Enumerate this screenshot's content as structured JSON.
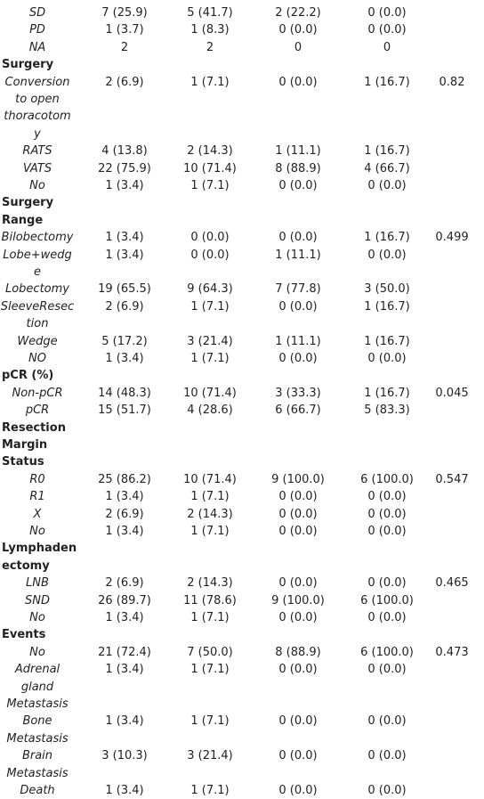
{
  "rows": [
    {
      "type": "data",
      "label": "SD",
      "values": [
        "7 (25.9)",
        "5 (41.7)",
        "2 (22.2)",
        "0 (0.0)"
      ],
      "p": ""
    },
    {
      "type": "data",
      "label": "PD",
      "values": [
        "1 (3.7)",
        "1 (8.3)",
        "0 (0.0)",
        "0 (0.0)"
      ],
      "p": ""
    },
    {
      "type": "data",
      "label": "NA",
      "values": [
        "2",
        "2",
        "0",
        "0"
      ],
      "p": ""
    },
    {
      "type": "section",
      "lines": [
        "Surgery"
      ]
    },
    {
      "type": "data",
      "lines": [
        "Conversion",
        "to open",
        "thoracotom",
        "y"
      ],
      "values": [
        "2 (6.9)",
        "1 (7.1)",
        "0 (0.0)",
        "1 (16.7)"
      ],
      "p": "0.82"
    },
    {
      "type": "data",
      "label": "RATS",
      "values": [
        "4 (13.8)",
        "2 (14.3)",
        "1 (11.1)",
        "1 (16.7)"
      ],
      "p": ""
    },
    {
      "type": "data",
      "label": "VATS",
      "values": [
        "22 (75.9)",
        "10 (71.4)",
        "8 (88.9)",
        "4 (66.7)"
      ],
      "p": ""
    },
    {
      "type": "data",
      "label": "No",
      "values": [
        "1 (3.4)",
        "1 (7.1)",
        "0 (0.0)",
        "0 (0.0)"
      ],
      "p": ""
    },
    {
      "type": "section",
      "lines": [
        "Surgery",
        "Range"
      ]
    },
    {
      "type": "data",
      "label": "Bilobectomy",
      "values": [
        "1 (3.4)",
        "0 (0.0)",
        "0 (0.0)",
        "1 (16.7)"
      ],
      "p": "0.499"
    },
    {
      "type": "data",
      "lines": [
        "Lobe+wedg",
        "e"
      ],
      "values": [
        "1 (3.4)",
        "0 (0.0)",
        "1 (11.1)",
        "0 (0.0)"
      ],
      "p": ""
    },
    {
      "type": "data",
      "label": "Lobectomy",
      "values": [
        "19 (65.5)",
        "9 (64.3)",
        "7 (77.8)",
        "3 (50.0)"
      ],
      "p": ""
    },
    {
      "type": "data",
      "lines": [
        "SleeveResec",
        "tion"
      ],
      "values": [
        "2 (6.9)",
        "1 (7.1)",
        "0 (0.0)",
        "1 (16.7)"
      ],
      "p": ""
    },
    {
      "type": "data",
      "label": "Wedge",
      "values": [
        "5 (17.2)",
        "3 (21.4)",
        "1 (11.1)",
        "1 (16.7)"
      ],
      "p": ""
    },
    {
      "type": "data",
      "label": "NO",
      "values": [
        "1 (3.4)",
        "1 (7.1)",
        "0 (0.0)",
        "0 (0.0)"
      ],
      "p": ""
    },
    {
      "type": "section",
      "lines": [
        "pCR (%)"
      ]
    },
    {
      "type": "data",
      "label": "Non-pCR",
      "values": [
        "14 (48.3)",
        "10 (71.4)",
        "3 (33.3)",
        "1 (16.7)"
      ],
      "p": "0.045"
    },
    {
      "type": "data",
      "label": "pCR",
      "values": [
        "15 (51.7)",
        "4 (28.6)",
        "6 (66.7)",
        "5 (83.3)"
      ],
      "p": ""
    },
    {
      "type": "section",
      "lines": [
        "Resection",
        "Margin",
        "Status"
      ]
    },
    {
      "type": "data",
      "label": "R0",
      "values": [
        "25 (86.2)",
        "10 (71.4)",
        "9 (100.0)",
        "6 (100.0)"
      ],
      "p": "0.547"
    },
    {
      "type": "data",
      "label": "R1",
      "values": [
        "1 (3.4)",
        "1 (7.1)",
        "0 (0.0)",
        "0 (0.0)"
      ],
      "p": ""
    },
    {
      "type": "data",
      "label": "X",
      "values": [
        "2 (6.9)",
        "2 (14.3)",
        "0 (0.0)",
        "0 (0.0)"
      ],
      "p": ""
    },
    {
      "type": "data",
      "label": "No",
      "values": [
        "1 (3.4)",
        "1 (7.1)",
        "0 (0.0)",
        "0 (0.0)"
      ],
      "p": ""
    },
    {
      "type": "section",
      "lines": [
        "Lymphaden",
        "ectomy"
      ]
    },
    {
      "type": "data",
      "label": "LNB",
      "values": [
        "2 (6.9)",
        "2 (14.3)",
        "0 (0.0)",
        "0 (0.0)"
      ],
      "p": "0.465"
    },
    {
      "type": "data",
      "label": "SND",
      "values": [
        "26 (89.7)",
        "11 (78.6)",
        "9 (100.0)",
        "6 (100.0)"
      ],
      "p": ""
    },
    {
      "type": "data",
      "label": "No",
      "values": [
        "1 (3.4)",
        "1 (7.1)",
        "0 (0.0)",
        "0 (0.0)"
      ],
      "p": ""
    },
    {
      "type": "section",
      "lines": [
        "Events"
      ]
    },
    {
      "type": "data",
      "label": "No",
      "values": [
        "21 (72.4)",
        "7 (50.0)",
        "8 (88.9)",
        "6 (100.0)"
      ],
      "p": "0.473"
    },
    {
      "type": "data",
      "lines": [
        "Adrenal",
        "gland",
        "Metastasis"
      ],
      "values": [
        "1 (3.4)",
        "1 (7.1)",
        "0 (0.0)",
        "0 (0.0)"
      ],
      "p": ""
    },
    {
      "type": "data",
      "lines": [
        "Bone",
        "Metastasis"
      ],
      "values": [
        "1 (3.4)",
        "1 (7.1)",
        "0 (0.0)",
        "0 (0.0)"
      ],
      "p": ""
    },
    {
      "type": "data",
      "lines": [
        "Brain",
        "Metastasis"
      ],
      "values": [
        "3 (10.3)",
        "3 (21.4)",
        "0 (0.0)",
        "0 (0.0)"
      ],
      "p": ""
    },
    {
      "type": "data",
      "label": "Death",
      "values": [
        "1 (3.4)",
        "1 (7.1)",
        "0 (0.0)",
        "0 (0.0)"
      ],
      "p": ""
    }
  ]
}
